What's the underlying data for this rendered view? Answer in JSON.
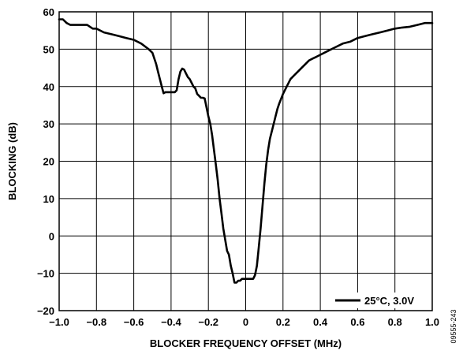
{
  "chart_data": {
    "type": "line",
    "xlabel": "BLOCKER FREQUENCY OFFSET (MHz)",
    "ylabel": "BLOCKING (dB)",
    "xlim": [
      -1.0,
      1.0
    ],
    "ylim": [
      -20,
      60
    ],
    "x_ticks": [
      -1.0,
      -0.8,
      -0.6,
      -0.4,
      -0.2,
      0,
      0.2,
      0.4,
      0.6,
      0.8,
      1.0
    ],
    "x_tick_labels": [
      "−1.0",
      "−0.8",
      "−0.6",
      "−0.4",
      "−0.2",
      "0",
      "0.2",
      "0.4",
      "0.6",
      "0.8",
      "1.0"
    ],
    "y_ticks": [
      -20,
      -10,
      0,
      10,
      20,
      30,
      40,
      50,
      60
    ],
    "y_tick_labels": [
      "−20",
      "−10",
      "0",
      "10",
      "20",
      "30",
      "40",
      "50",
      "60"
    ],
    "grid": true,
    "legend_position": "bottom-right",
    "series": [
      {
        "name": "25°C, 3.0V",
        "color": "#000000",
        "x": [
          -1.0,
          -0.98,
          -0.96,
          -0.94,
          -0.9,
          -0.85,
          -0.82,
          -0.8,
          -0.76,
          -0.72,
          -0.68,
          -0.64,
          -0.6,
          -0.56,
          -0.52,
          -0.5,
          -0.48,
          -0.47,
          -0.46,
          -0.45,
          -0.44,
          -0.43,
          -0.42,
          -0.4,
          -0.38,
          -0.37,
          -0.36,
          -0.35,
          -0.34,
          -0.33,
          -0.32,
          -0.31,
          -0.3,
          -0.29,
          -0.28,
          -0.27,
          -0.26,
          -0.25,
          -0.24,
          -0.23,
          -0.22,
          -0.2,
          -0.19,
          -0.18,
          -0.17,
          -0.16,
          -0.15,
          -0.14,
          -0.13,
          -0.12,
          -0.11,
          -0.1,
          -0.09,
          -0.08,
          -0.07,
          -0.06,
          -0.05,
          -0.04,
          -0.03,
          -0.02,
          -0.01,
          0,
          0.02,
          0.04,
          0.05,
          0.06,
          0.07,
          0.08,
          0.09,
          0.1,
          0.11,
          0.12,
          0.13,
          0.14,
          0.15,
          0.16,
          0.17,
          0.18,
          0.2,
          0.22,
          0.24,
          0.26,
          0.28,
          0.3,
          0.32,
          0.34,
          0.36,
          0.38,
          0.4,
          0.44,
          0.48,
          0.52,
          0.56,
          0.6,
          0.64,
          0.68,
          0.72,
          0.76,
          0.8,
          0.84,
          0.88,
          0.92,
          0.96,
          1.0
        ],
        "y": [
          58,
          58,
          57,
          56.5,
          56.5,
          56.5,
          55.5,
          55.5,
          54.5,
          54,
          53.5,
          53,
          52.5,
          51.5,
          50,
          49,
          46,
          44,
          42,
          40,
          38.2,
          38.5,
          38.5,
          38.5,
          38.5,
          39,
          42,
          44,
          44.8,
          44.5,
          43.5,
          42.5,
          42,
          41,
          40,
          39.5,
          38,
          37.5,
          37,
          37,
          36.8,
          32,
          30,
          27,
          23,
          19,
          15,
          10,
          6,
          2,
          -1,
          -4,
          -5,
          -8,
          -10,
          -12.5,
          -12.5,
          -12,
          -12,
          -11.5,
          -11.5,
          -11.5,
          -11.5,
          -11.5,
          -10.5,
          -8,
          -3,
          2,
          8,
          14,
          19,
          23,
          26,
          28,
          30,
          32,
          34,
          35.5,
          38,
          40,
          42,
          43,
          44,
          45,
          46,
          47,
          47.5,
          48,
          48.5,
          49.5,
          50.5,
          51.5,
          52,
          53,
          53.5,
          54,
          54.5,
          55,
          55.5,
          55.8,
          56,
          56.5,
          57,
          57
        ]
      }
    ]
  },
  "figure_id": "09555-243"
}
